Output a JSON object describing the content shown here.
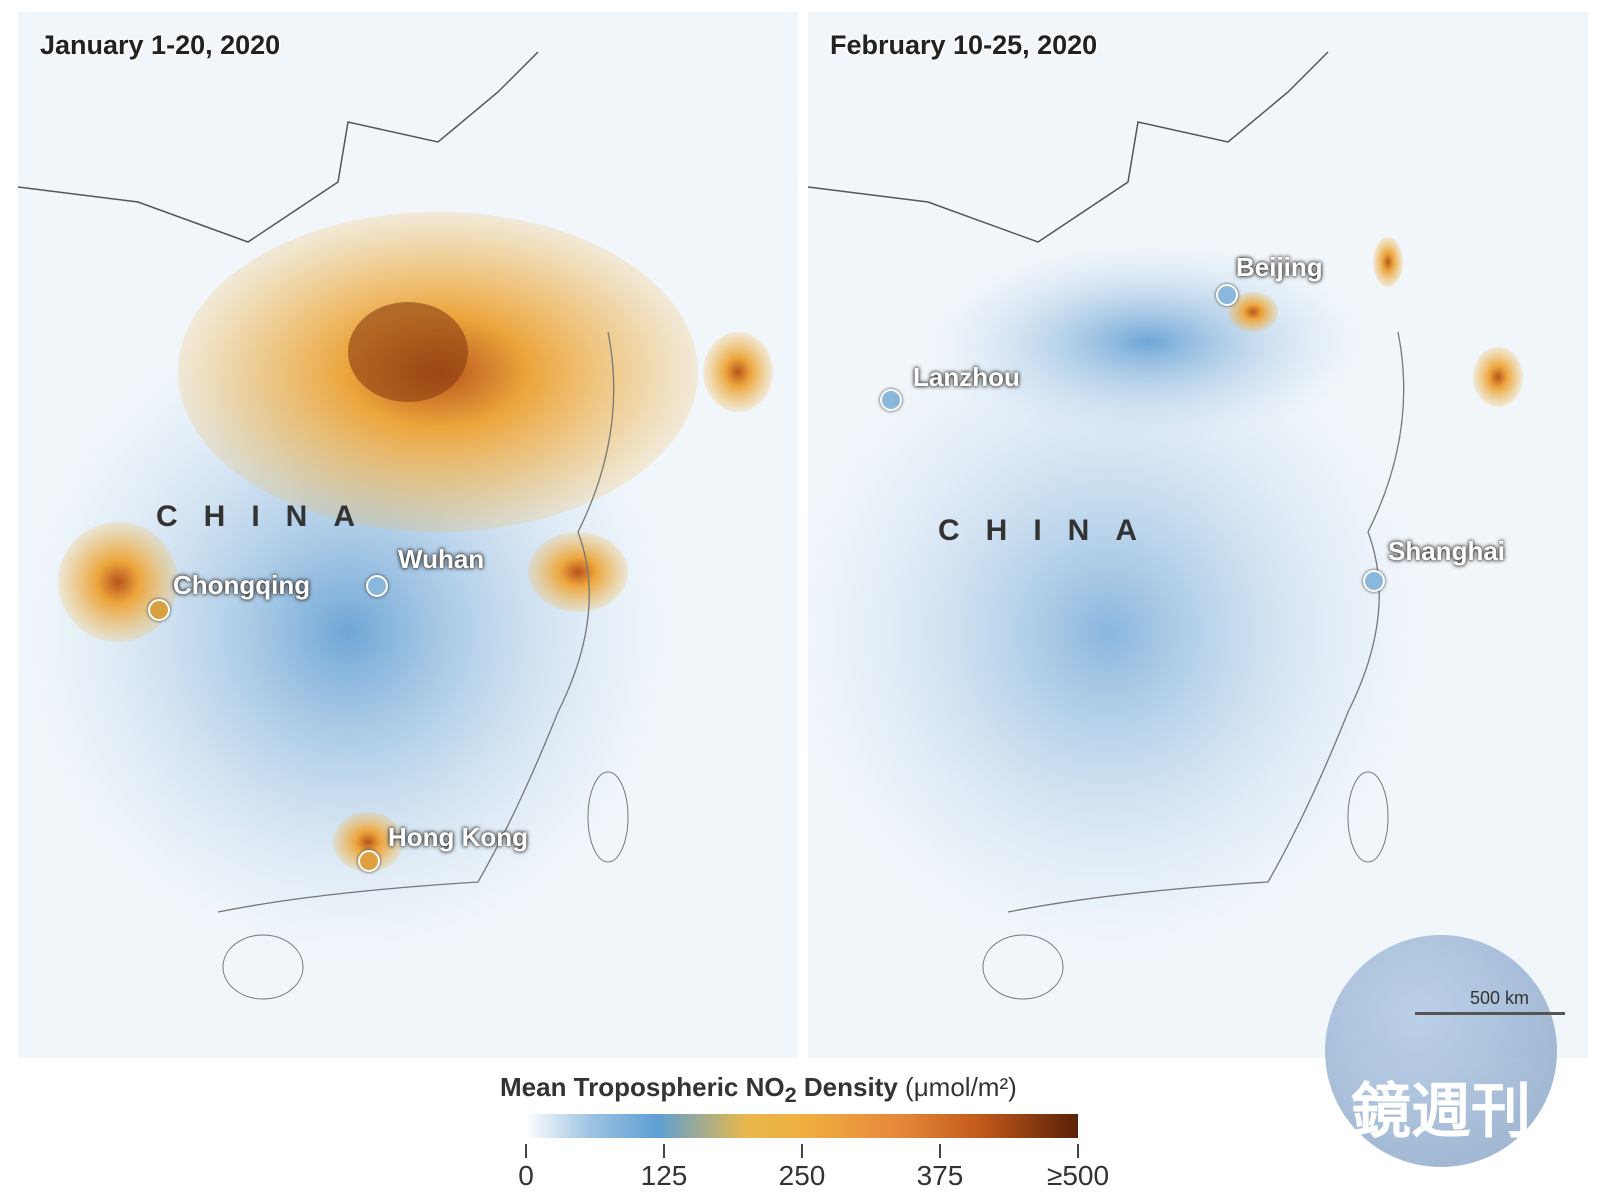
{
  "panels": [
    {
      "title": "January 1-20, 2020",
      "country": "CHINA",
      "cities": [
        "Chongqing",
        "Wuhan",
        "Hong Kong"
      ]
    },
    {
      "title": "February 10-25, 2020",
      "country": "CHINA",
      "cities": [
        "Beijing",
        "Lanzhou",
        "Shanghai"
      ]
    }
  ],
  "legend": {
    "title": "Mean Tropospheric NO",
    "subscript": "2",
    "title_end": " Density",
    "unit": "(μmol/m²)",
    "ticks": [
      "0",
      "125",
      "250",
      "375",
      "≥500"
    ],
    "range": [
      0,
      500
    ],
    "colors": [
      "#ffffff",
      "#5e9fd3",
      "#f0b040",
      "#c25a1b",
      "#5a2108"
    ]
  },
  "scale_label": "500 km",
  "watermark": "鏡週刊"
}
